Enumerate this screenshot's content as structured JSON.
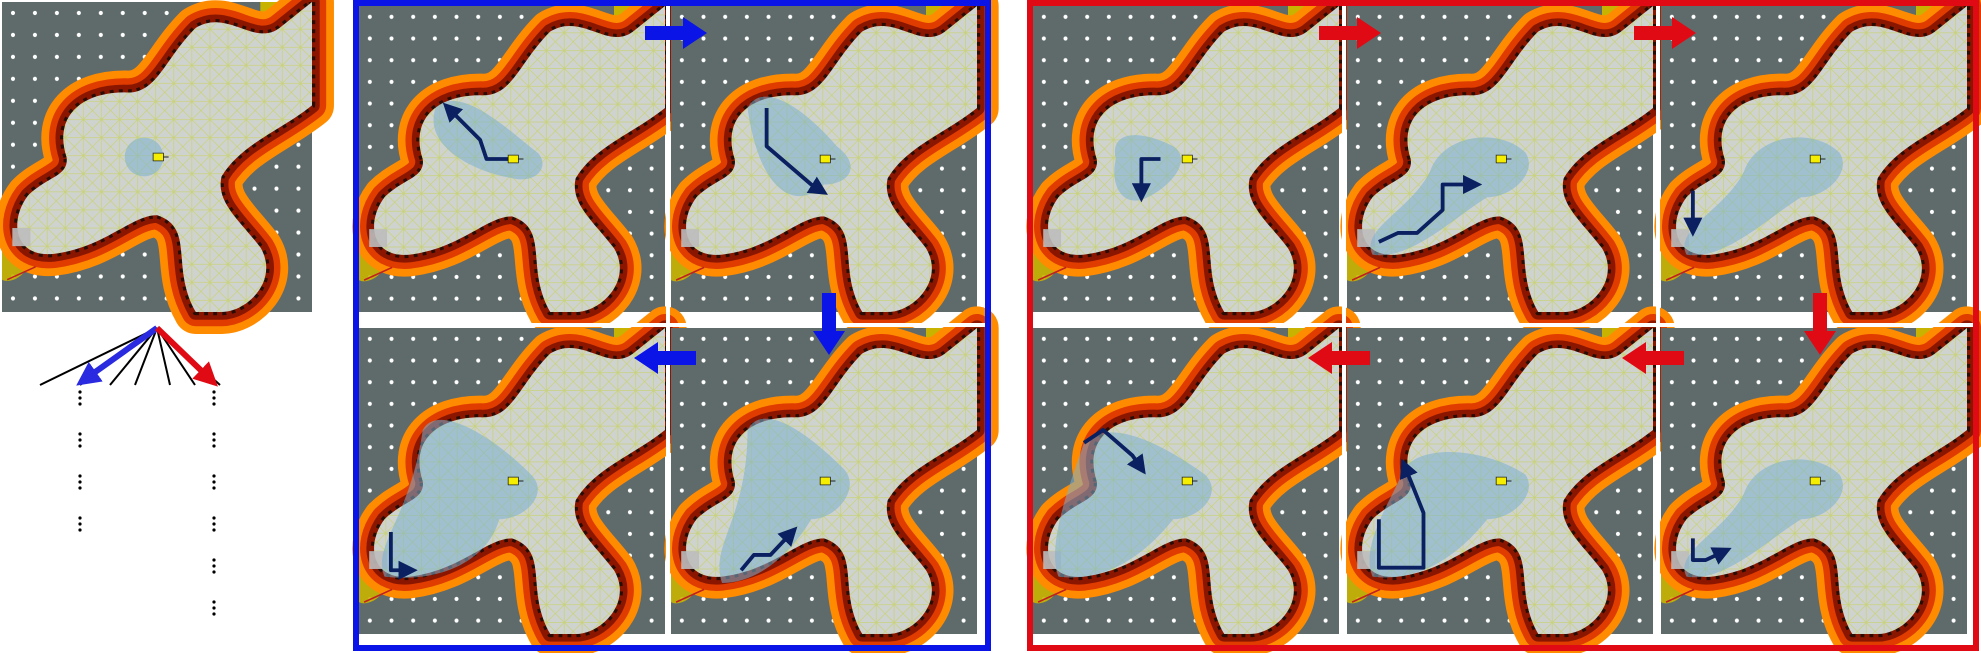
{
  "colors": {
    "wall": "#5f6b6b",
    "free": "#cfd3cf",
    "yellow": "#c8b400",
    "lightgray": "#bdbdbd",
    "heat_outer": "#ff8c00",
    "heat_mid": "#e03c00",
    "heat_inner": "#8a1600",
    "heat_core": "#2a0c05",
    "grid_line": "#c9d27a",
    "dot": "#ffffff",
    "explored": "#7ab0d0",
    "path_dark": "#0a2060",
    "path_trail": "#3a6fa0",
    "robot": "#f5ee00",
    "blue_frame": "#0a14e6",
    "red_frame": "#e00a14",
    "tree_line": "#000000"
  },
  "groups": {
    "blue": {
      "frame_name": "blue-sequence-frame"
    },
    "red": {
      "frame_name": "red-sequence-frame"
    }
  }
}
